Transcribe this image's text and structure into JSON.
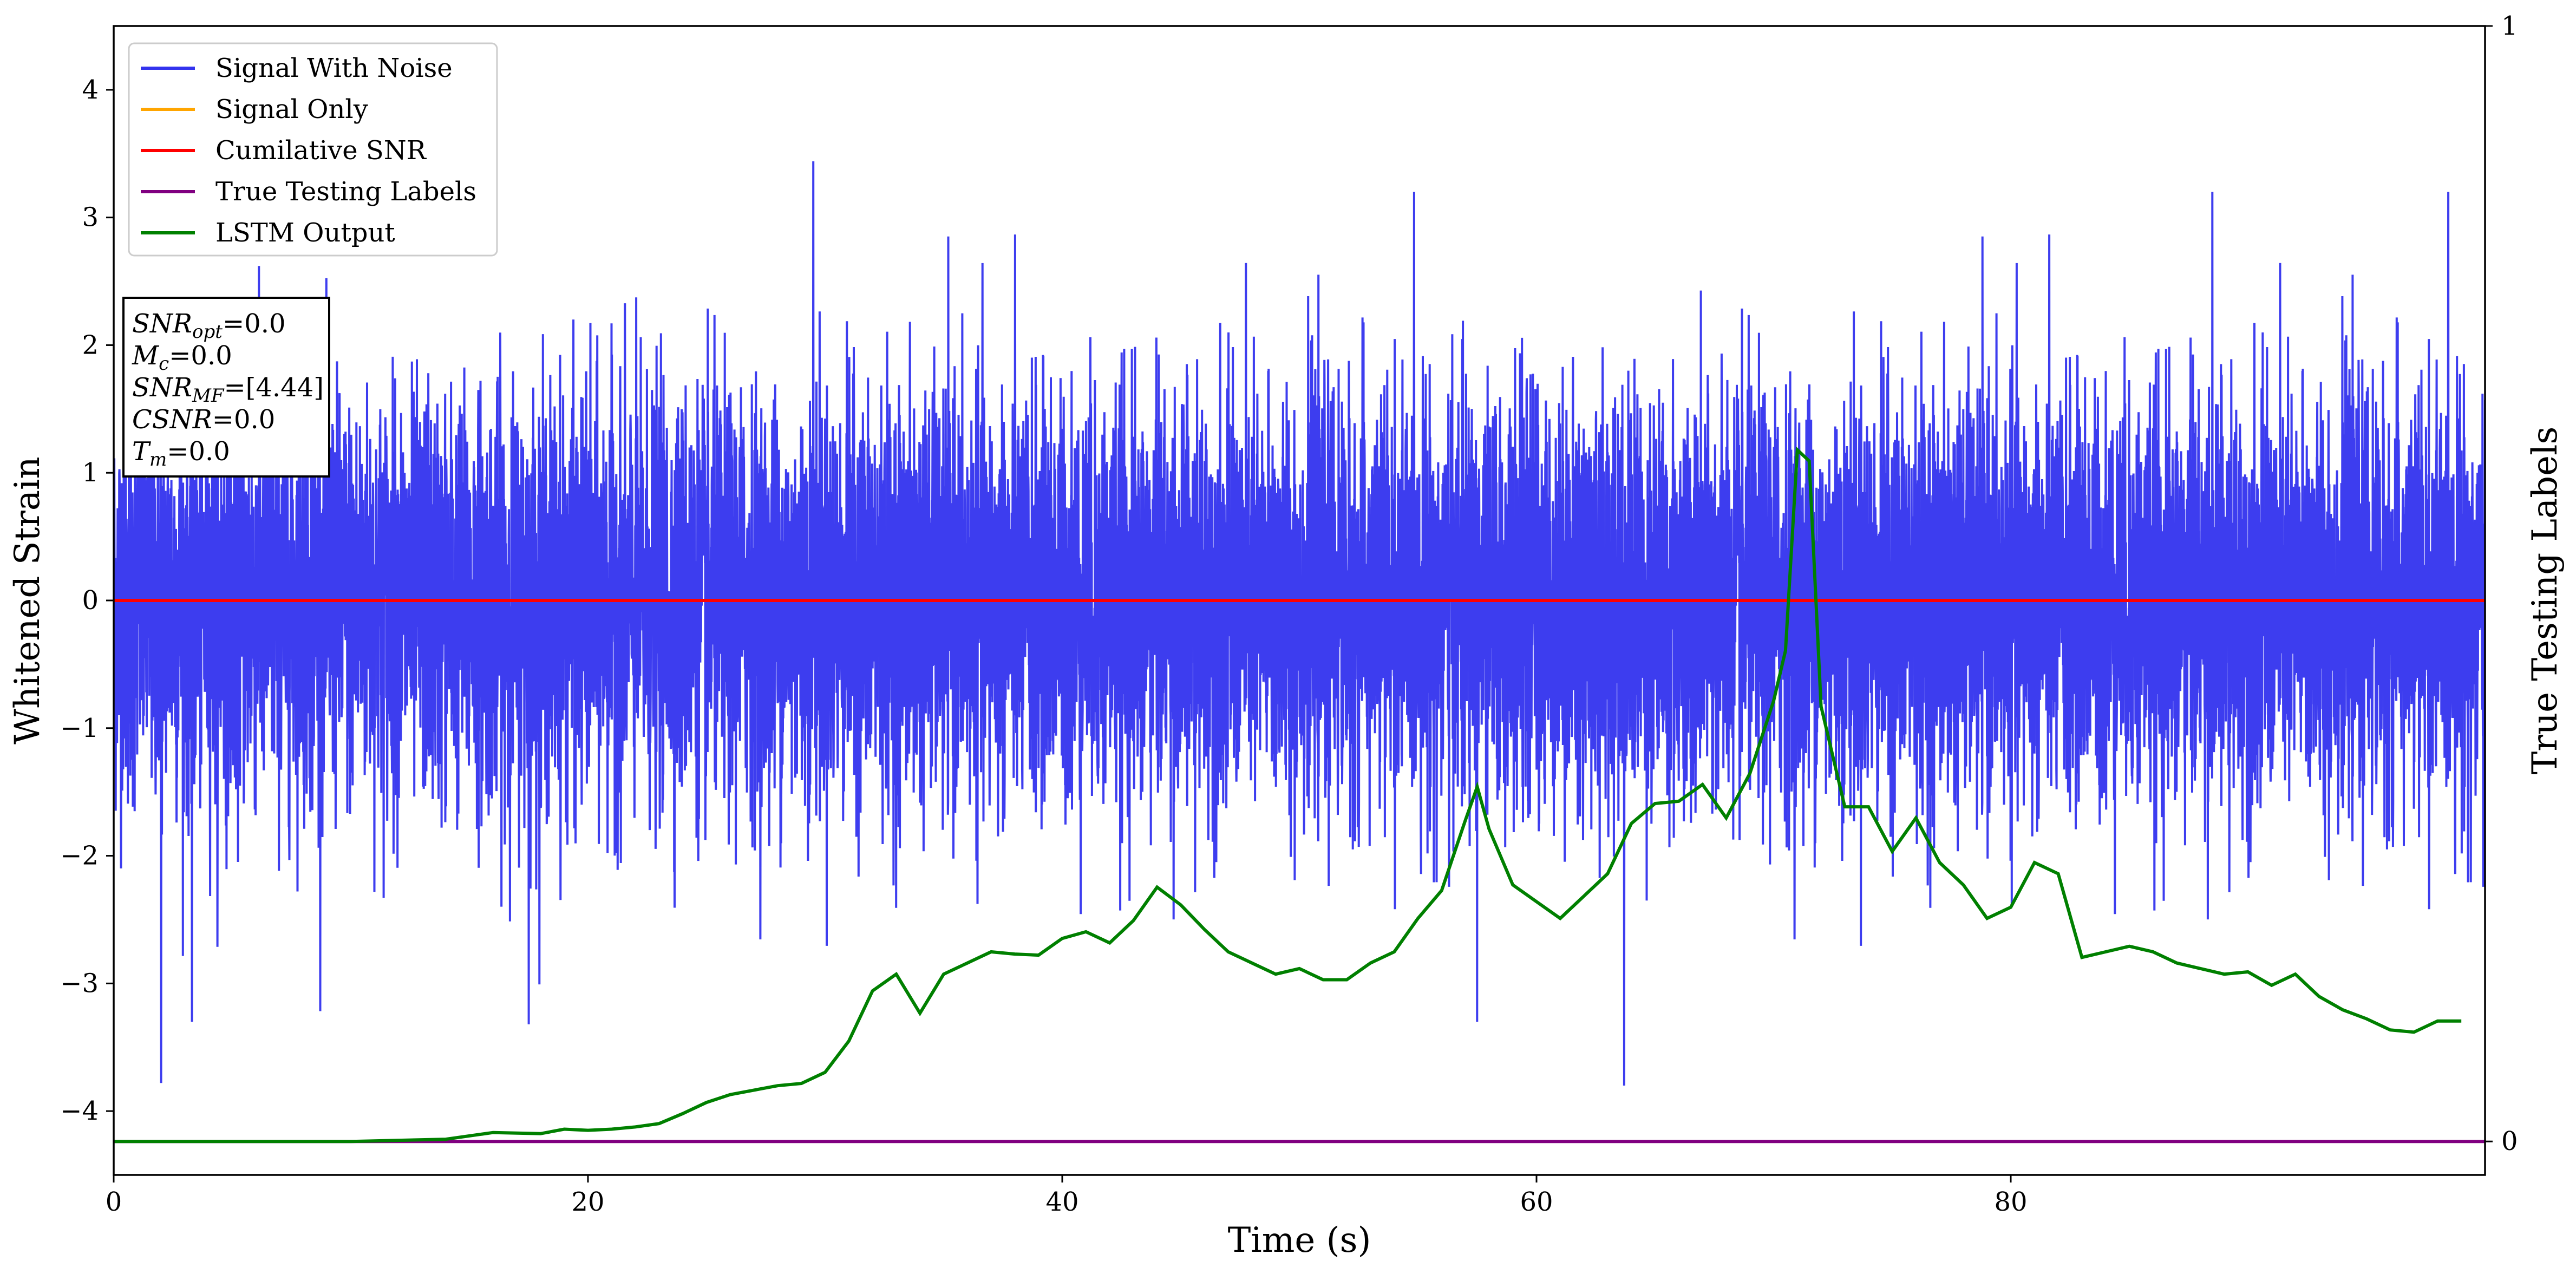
{
  "chart_data": {
    "type": "line",
    "xlabel": "Time (s)",
    "ylabel": "Whitened Strain",
    "y2label": "True Testing Labels",
    "xlim": [
      0,
      100
    ],
    "ylim": [
      -4.5,
      4.5
    ],
    "y2lim": [
      -0.03,
      1
    ],
    "x_ticks": [
      0,
      20,
      40,
      60,
      80
    ],
    "y_ticks": [
      -4,
      -3,
      -2,
      -1,
      0,
      1,
      2,
      3,
      4
    ],
    "y2_ticks": [
      0,
      1
    ],
    "grid": false,
    "legend_position": "top-left",
    "legend": [
      {
        "label": "Signal With Noise",
        "color": "#3333ee"
      },
      {
        "label": "Signal Only",
        "color": "#ffa500"
      },
      {
        "label": "Cumilative SNR",
        "color": "#ff0000"
      },
      {
        "label": "True Testing Labels",
        "color": "#800080"
      },
      {
        "label": "LSTM Output",
        "color": "#008000"
      }
    ],
    "stats_box": [
      {
        "name": "SNR",
        "sub": "opt",
        "value": "=0.0"
      },
      {
        "name": "M",
        "sub": "c",
        "value": "=0.0"
      },
      {
        "name": "SNR",
        "sub": "MF",
        "value": "=[4.44]"
      },
      {
        "name": "CSNR",
        "sub": "",
        "value": "=0.0"
      },
      {
        "name": "T",
        "sub": "m",
        "value": "=0.0"
      }
    ],
    "series": [
      {
        "name": "Signal With Noise",
        "axis": "left",
        "color": "#3333ee",
        "description": "dense white-noise strain, std approx 0.8, spikes to +3.4 near t=29.5 and -3.8 near t=2 and t=63.7",
        "noise_std": 0.8,
        "notable_peaks": [
          {
            "x": 29.5,
            "y": 3.44
          },
          {
            "x": 2.0,
            "y": -3.78
          },
          {
            "x": 63.7,
            "y": -3.8
          },
          {
            "x": 17.5,
            "y": -3.32
          },
          {
            "x": 3.3,
            "y": -3.3
          },
          {
            "x": 88.5,
            "y": 3.2
          },
          {
            "x": 57.5,
            "y": -3.3
          }
        ]
      },
      {
        "name": "Signal Only",
        "axis": "left",
        "color": "#ffa500",
        "x": [
          0,
          100
        ],
        "y": [
          0,
          0
        ]
      },
      {
        "name": "Cumilative SNR",
        "axis": "left",
        "color": "#ff0000",
        "x": [
          0,
          100
        ],
        "y": [
          0,
          0
        ]
      },
      {
        "name": "True Testing Labels",
        "axis": "right",
        "color": "#800080",
        "x": [
          0,
          100
        ],
        "y": [
          0,
          0
        ]
      },
      {
        "name": "LSTM Output",
        "axis": "right",
        "color": "#008000",
        "x": [
          0,
          10,
          14,
          16,
          18,
          19,
          20,
          21,
          22,
          23,
          24,
          25,
          26,
          27,
          28,
          29,
          30,
          31,
          32,
          33,
          34,
          35,
          36,
          37,
          38,
          39,
          40,
          41,
          42,
          43,
          44,
          45,
          46,
          47,
          48,
          49,
          50,
          51,
          52,
          53,
          54,
          55,
          56,
          57,
          57.5,
          58,
          59,
          60,
          61,
          62,
          63,
          64,
          65,
          66,
          67,
          68,
          69,
          70,
          70.5,
          71,
          71.5,
          72,
          73,
          74,
          75,
          76,
          77,
          78,
          79,
          80,
          81,
          82,
          83,
          84,
          85,
          86,
          87,
          88,
          89,
          90,
          91,
          92,
          93,
          94,
          95,
          96,
          97,
          98,
          99
        ],
        "y": [
          0.0,
          0.0,
          0.002,
          0.008,
          0.007,
          0.011,
          0.01,
          0.011,
          0.013,
          0.016,
          0.025,
          0.035,
          0.042,
          0.046,
          0.05,
          0.052,
          0.062,
          0.09,
          0.135,
          0.15,
          0.115,
          0.15,
          0.16,
          0.17,
          0.168,
          0.167,
          0.182,
          0.188,
          0.178,
          0.198,
          0.228,
          0.212,
          0.19,
          0.17,
          0.16,
          0.15,
          0.155,
          0.145,
          0.145,
          0.16,
          0.17,
          0.2,
          0.225,
          0.288,
          0.318,
          0.28,
          0.23,
          0.215,
          0.2,
          0.22,
          0.24,
          0.285,
          0.303,
          0.305,
          0.32,
          0.29,
          0.33,
          0.395,
          0.44,
          0.62,
          0.61,
          0.39,
          0.3,
          0.3,
          0.26,
          0.29,
          0.25,
          0.23,
          0.2,
          0.21,
          0.25,
          0.24,
          0.165,
          0.17,
          0.175,
          0.17,
          0.16,
          0.155,
          0.15,
          0.152,
          0.14,
          0.15,
          0.13,
          0.118,
          0.11,
          0.1,
          0.098,
          0.108,
          0.108
        ]
      }
    ]
  }
}
